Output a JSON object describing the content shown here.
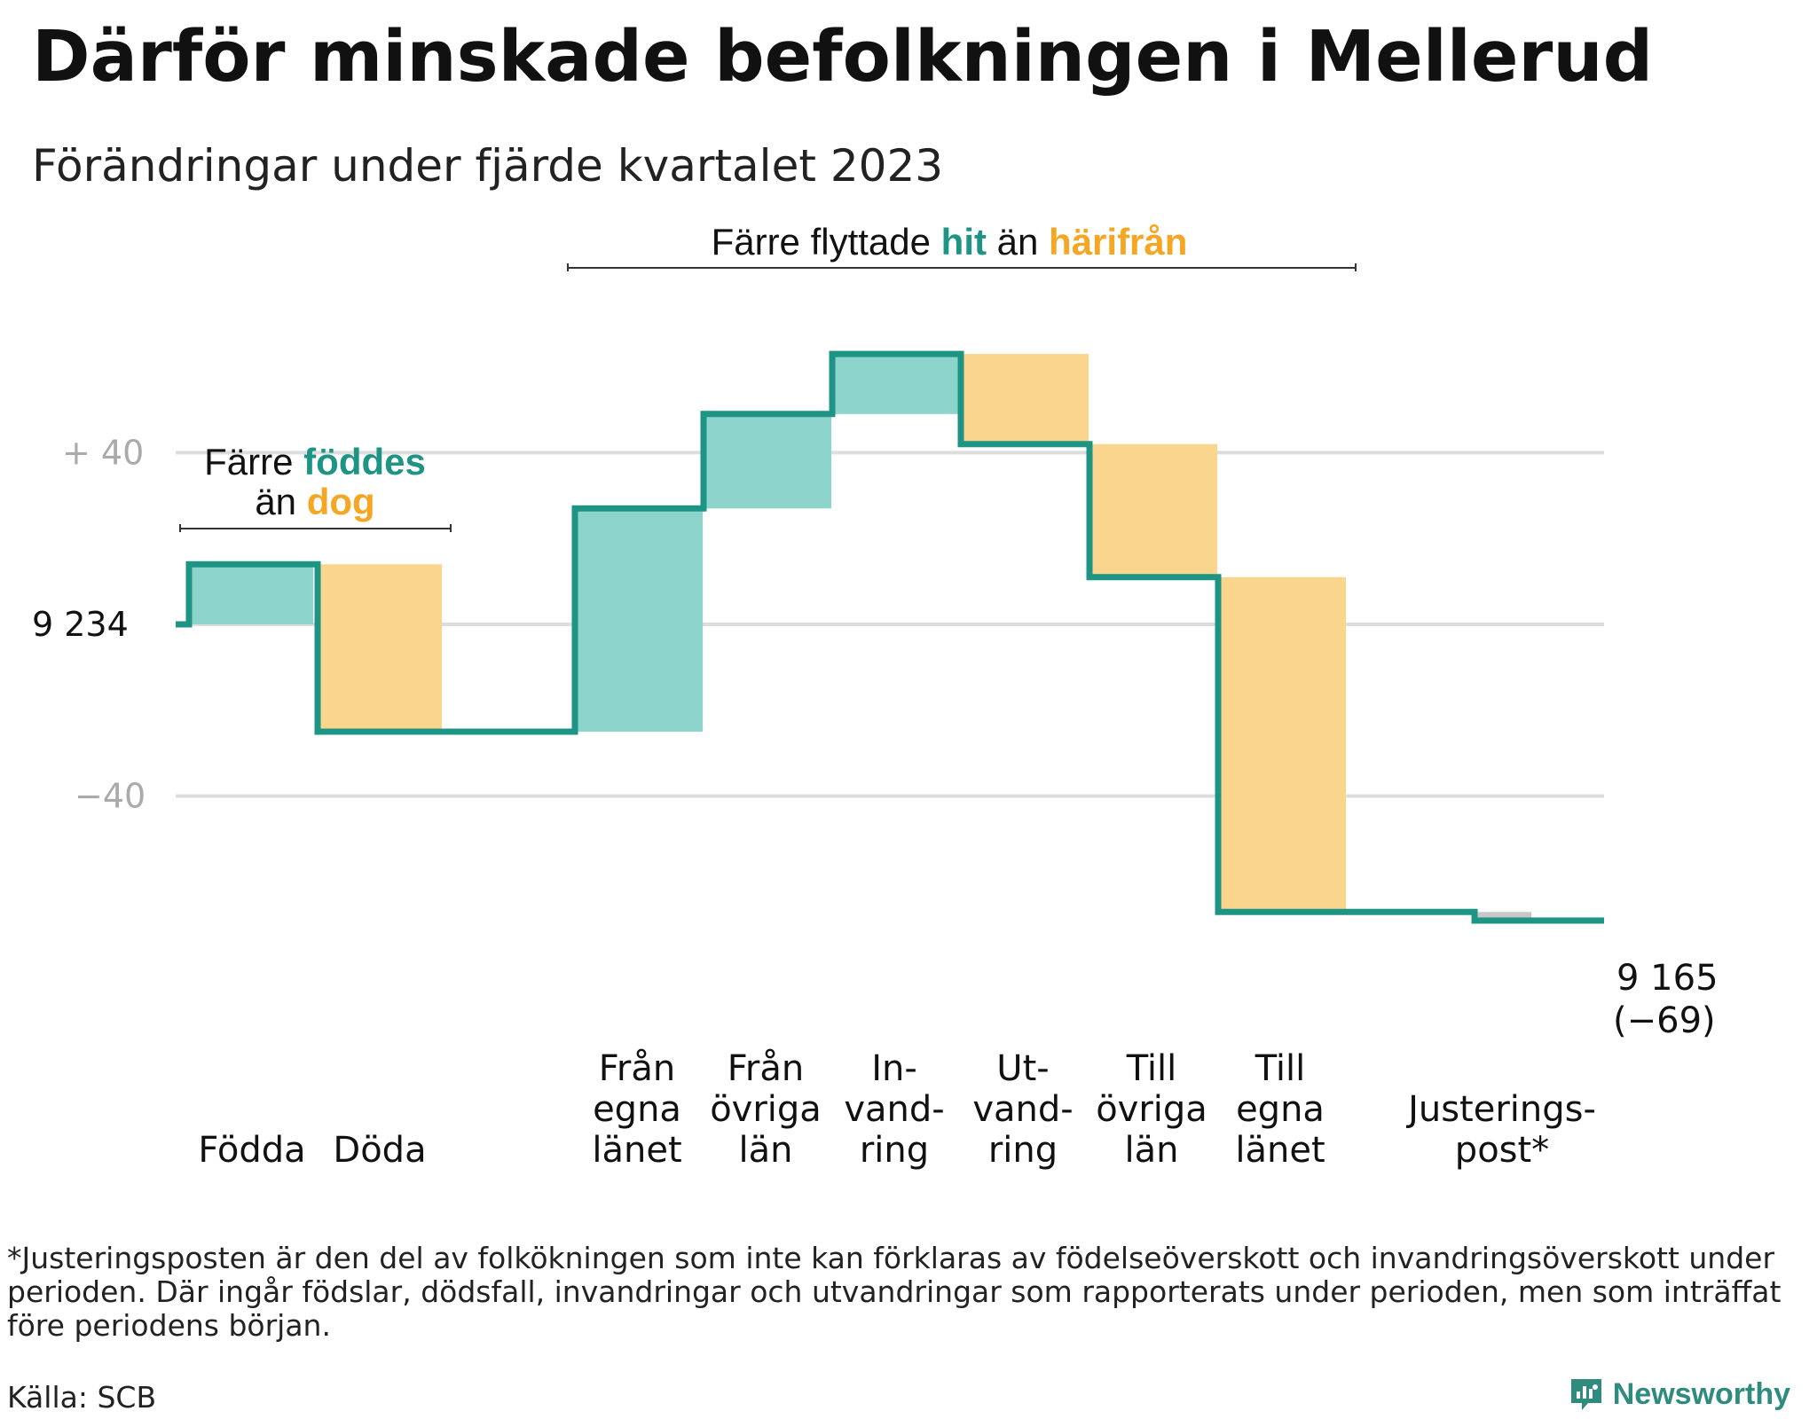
{
  "title": "Därför minskade befolkningen i Mellerud",
  "subtitle": "Förändringar under fjärde kvartalet 2023",
  "colors": {
    "teal_line": "#1e9484",
    "teal_fill": "#8dd5cc",
    "orange_fill": "#fad58e",
    "orange_text": "#f5a623",
    "teal_text": "#1e9484",
    "grey_fill": "#c8c8c8",
    "grid": "#dddddd"
  },
  "annotations": {
    "births": {
      "p1": "Färre ",
      "p2": "föddes",
      "p3": "än ",
      "p4": "dog"
    },
    "migration": {
      "p1": "Färre flyttade ",
      "p2": "hit",
      "p3": " än ",
      "p4": "härifrån"
    }
  },
  "end_label": {
    "value": "9 165",
    "change": "(−69)"
  },
  "footnote": "*Justeringsposten är den del av folkökningen som inte kan förklaras av födelseöverskott och invandringsöverskott under perioden. Där ingår födslar, dödsfall, invandringar och utvandringar som rapporterats under perioden, men som inträffat före periodens början.",
  "source": "Källa: SCB",
  "logo": {
    "text": "Newsworthy",
    "icon": "newsworthy-logo-icon"
  },
  "chart_data": {
    "type": "waterfall",
    "start_value": 9234,
    "end_value": 9165,
    "total_change": -69,
    "y_ticks": [
      {
        "value": 40,
        "label": "+  40"
      },
      {
        "value": 0,
        "label": "9  234"
      },
      {
        "value": -40,
        "label": "−40"
      }
    ],
    "ylim": [
      -75,
      65
    ],
    "grid": true,
    "steps": [
      {
        "category": "Födda",
        "label_lines": [
          "Födda"
        ],
        "change": 14,
        "kind": "in"
      },
      {
        "category": "Döda",
        "label_lines": [
          "Döda"
        ],
        "change": -39,
        "kind": "out"
      },
      {
        "category": "Från egna länet",
        "label_lines": [
          "Från",
          "egna",
          "länet"
        ],
        "change": 52,
        "kind": "in"
      },
      {
        "category": "Från övriga län",
        "label_lines": [
          "Från",
          "övriga",
          "län"
        ],
        "change": 22,
        "kind": "in"
      },
      {
        "category": "Invandring",
        "label_lines": [
          "In-",
          "vand-",
          "ring"
        ],
        "change": 14,
        "kind": "in"
      },
      {
        "category": "Utvandring",
        "label_lines": [
          "Ut-",
          "vand-",
          "ring"
        ],
        "change": -21,
        "kind": "out"
      },
      {
        "category": "Till övriga län",
        "label_lines": [
          "Till",
          "övriga",
          "län"
        ],
        "change": -31,
        "kind": "out"
      },
      {
        "category": "Till egna länet",
        "label_lines": [
          "Till",
          "egna",
          "länet"
        ],
        "change": -78,
        "kind": "out"
      },
      {
        "category": "Justeringspost*",
        "label_lines": [
          "Justerings-",
          "post*"
        ],
        "change": -2,
        "kind": "adj"
      }
    ]
  }
}
